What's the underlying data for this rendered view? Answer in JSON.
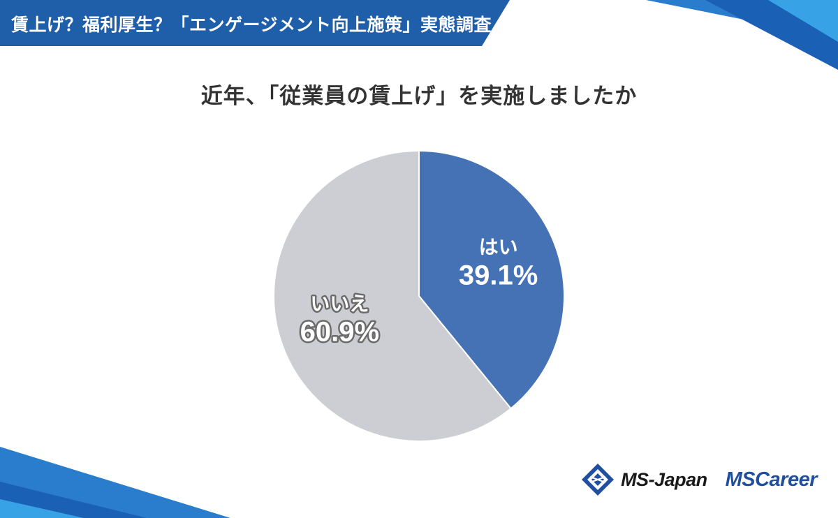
{
  "header": {
    "banner_title": "賃上げ？福利厚生？「エンゲージメント向上施策」実態調査"
  },
  "colors": {
    "banner": "#1f5fa9",
    "yes_slice": "#4472b4",
    "no_slice": "#ccced4",
    "no_label_outline": "#6b6b6b"
  },
  "chart_data": {
    "type": "pie",
    "title": "近年、「従業員の賃上げ」を実施しましたか",
    "slices": [
      {
        "label": "はい",
        "value": 39.1,
        "value_label": "39.1%",
        "color": "#4472b4"
      },
      {
        "label": "いいえ",
        "value": 60.9,
        "value_label": "60.9%",
        "color": "#ccced4"
      }
    ],
    "start": "12 o'clock",
    "direction": "clockwise"
  },
  "footer": {
    "logo_ms_japan": "MS-Japan",
    "logo_ms_career": "MSCareer"
  }
}
